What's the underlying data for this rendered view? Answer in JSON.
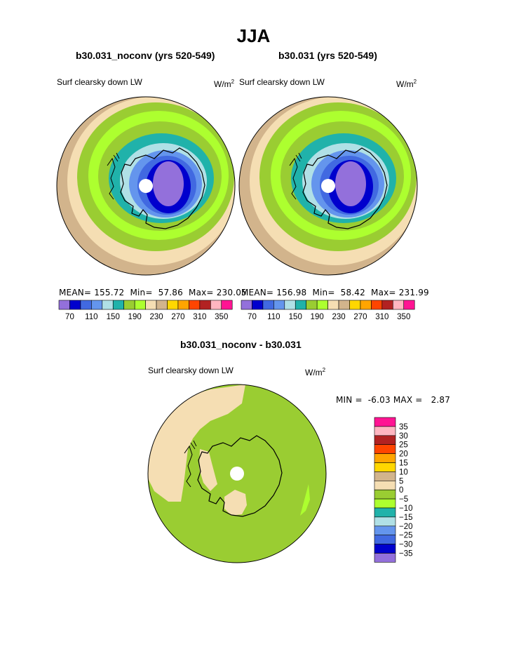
{
  "page_title": "JJA",
  "palette": [
    "#9370DB",
    "#0000CD",
    "#4169E1",
    "#6495ED",
    "#B0E0E6",
    "#20B2AA",
    "#9ACD32",
    "#ADFF2F",
    "#F5DEB3",
    "#D2B48C",
    "#FFD700",
    "#FFA500",
    "#FF4500",
    "#B22222",
    "#FFB6C1",
    "#FF1493"
  ],
  "chart_data": [
    {
      "type": "polar_contour_map",
      "title": "b30.031_noconv (yrs 520-549)",
      "variable": "Surf clearsky down LW",
      "units": "W/m",
      "units_sup": "2",
      "stats": {
        "mean_label": "MEAN=",
        "mean": "155.72",
        "min_label": "Min=",
        "min": "57.86",
        "max_label": "Max=",
        "max": "230.05"
      },
      "colorbar_ticks": [
        "70",
        "110",
        "150",
        "190",
        "230",
        "270",
        "310",
        "350"
      ],
      "contour_levels": [
        50,
        70,
        90,
        110,
        130,
        150,
        170,
        190,
        210,
        230,
        250,
        270,
        290,
        310,
        330,
        350
      ]
    },
    {
      "type": "polar_contour_map",
      "title": "b30.031 (yrs 520-549)",
      "variable": "Surf clearsky down LW",
      "units": "W/m",
      "units_sup": "2",
      "stats": {
        "mean_label": "MEAN=",
        "mean": "156.98",
        "min_label": "Min=",
        "min": "58.42",
        "max_label": "Max=",
        "max": "231.99"
      },
      "colorbar_ticks": [
        "70",
        "110",
        "150",
        "190",
        "230",
        "270",
        "310",
        "350"
      ],
      "contour_levels": [
        50,
        70,
        90,
        110,
        130,
        150,
        170,
        190,
        210,
        230,
        250,
        270,
        290,
        310,
        330,
        350
      ]
    },
    {
      "type": "polar_contour_map",
      "title": "b30.031_noconv - b30.031",
      "variable": "Surf clearsky down LW",
      "units": "W/m",
      "units_sup": "2",
      "stats": {
        "min_label": "MIN =",
        "min": "-6.03",
        "max_label": "MAX =",
        "max": "2.87"
      },
      "colorbar_ticks": [
        "35",
        "30",
        "25",
        "20",
        "15",
        "10",
        "5",
        "0",
        "−5",
        "−10",
        "−15",
        "−20",
        "−25",
        "−30",
        "−35"
      ],
      "colorbar_colors": [
        "#FF1493",
        "#FFB6C1",
        "#B22222",
        "#FF4500",
        "#FFA500",
        "#FFD700",
        "#D2B48C",
        "#F5DEB3",
        "#9ACD32",
        "#ADFF2F",
        "#20B2AA",
        "#B0E0E6",
        "#6495ED",
        "#4169E1",
        "#0000CD",
        "#9370DB"
      ]
    }
  ]
}
